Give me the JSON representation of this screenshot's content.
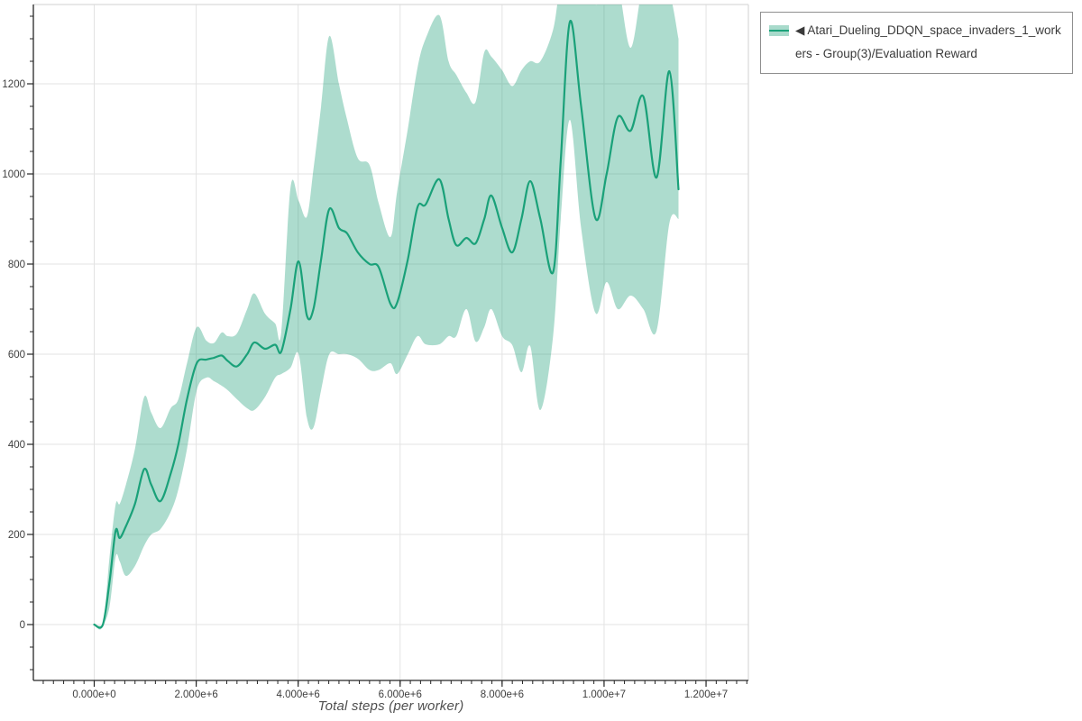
{
  "legend": {
    "label": "◀ Atari_Dueling_DDQN_space_invaders_1_workers - Group(3)/Evaluation Reward"
  },
  "chart_data": {
    "type": "line",
    "title": "",
    "xlabel": "Total steps (per worker)",
    "ylabel": "",
    "grid": true,
    "legend_position": "top-right",
    "xlim": [
      -1193700,
      12830500
    ],
    "ylim": [
      -124,
      1376
    ],
    "x_ticks": {
      "values": [
        0,
        2000000,
        4000000,
        6000000,
        8000000,
        10000000,
        12000000
      ],
      "labels": [
        "0.000e+0",
        "2.000e+6",
        "4.000e+6",
        "6.000e+6",
        "8.000e+6",
        "1.000e+7",
        "1.200e+7"
      ],
      "minor_step": 200000
    },
    "y_ticks": {
      "values": [
        0,
        200,
        400,
        600,
        800,
        1000,
        1200
      ],
      "labels": [
        "0",
        "200",
        "400",
        "600",
        "800",
        "1000",
        "1200"
      ],
      "minor_step": 50
    },
    "colors": {
      "line": "#1aa179",
      "band": "rgba(27,158,119,0.36)",
      "grid": "#e3e3e3",
      "frame_light": "#d9d9d9",
      "spine": "#262626",
      "tick_label": "#3d3d3d"
    },
    "series": [
      {
        "name": "Atari_Dueling_DDQN_space_invaders_1_workers - Group(3)/Evaluation Reward",
        "x": [
          0,
          170000,
          300000,
          420000,
          500000,
          620000,
          800000,
          980000,
          1120000,
          1300000,
          1500000,
          1650000,
          1820000,
          2010000,
          2200000,
          2350000,
          2500000,
          2620000,
          2800000,
          3000000,
          3140000,
          3350000,
          3550000,
          3670000,
          3850000,
          4010000,
          4170000,
          4300000,
          4450000,
          4610000,
          4800000,
          4960000,
          5170000,
          5400000,
          5580000,
          5810000,
          5940000,
          6150000,
          6340000,
          6500000,
          6770000,
          6950000,
          7100000,
          7300000,
          7480000,
          7650000,
          7790000,
          8000000,
          8200000,
          8380000,
          8550000,
          8750000,
          9000000,
          9150000,
          9330000,
          9550000,
          9830000,
          10050000,
          10270000,
          10520000,
          10770000,
          11030000,
          11280000,
          11460000
        ],
        "mean": [
          0,
          0,
          95,
          208,
          192,
          218,
          268,
          345,
          310,
          274,
          335,
          400,
          500,
          580,
          588,
          592,
          597,
          585,
          573,
          600,
          626,
          612,
          621,
          606,
          700,
          806,
          686,
          700,
          810,
          922,
          880,
          868,
          826,
          800,
          793,
          712,
          714,
          810,
          926,
          932,
          988,
          900,
          842,
          858,
          846,
          900,
          952,
          880,
          826,
          900,
          984,
          900,
          782,
          1030,
          1338,
          1150,
          902,
          1000,
          1126,
          1096,
          1172,
          992,
          1228,
          966
        ],
        "lower": [
          0,
          0,
          40,
          150,
          140,
          108,
          130,
          175,
          200,
          212,
          250,
          300,
          390,
          520,
          548,
          540,
          530,
          520,
          500,
          480,
          476,
          505,
          548,
          556,
          570,
          600,
          460,
          437,
          520,
          600,
          600,
          600,
          590,
          565,
          565,
          580,
          556,
          600,
          640,
          622,
          622,
          640,
          640,
          700,
          628,
          660,
          700,
          640,
          620,
          560,
          618,
          476,
          640,
          900,
          1120,
          880,
          692,
          760,
          700,
          730,
          700,
          652,
          890,
          900
        ],
        "upper": [
          0,
          0,
          150,
          266,
          268,
          310,
          390,
          505,
          470,
          436,
          480,
          500,
          580,
          660,
          630,
          625,
          648,
          640,
          646,
          700,
          735,
          690,
          668,
          650,
          970,
          940,
          905,
          1010,
          1150,
          1306,
          1200,
          1120,
          1035,
          1020,
          935,
          860,
          960,
          1100,
          1235,
          1300,
          1352,
          1250,
          1220,
          1180,
          1160,
          1270,
          1260,
          1230,
          1195,
          1230,
          1250,
          1250,
          1320,
          1420,
          1420,
          1420,
          1376,
          1400,
          1420,
          1280,
          1420,
          1400,
          1400,
          1300
        ]
      }
    ]
  }
}
